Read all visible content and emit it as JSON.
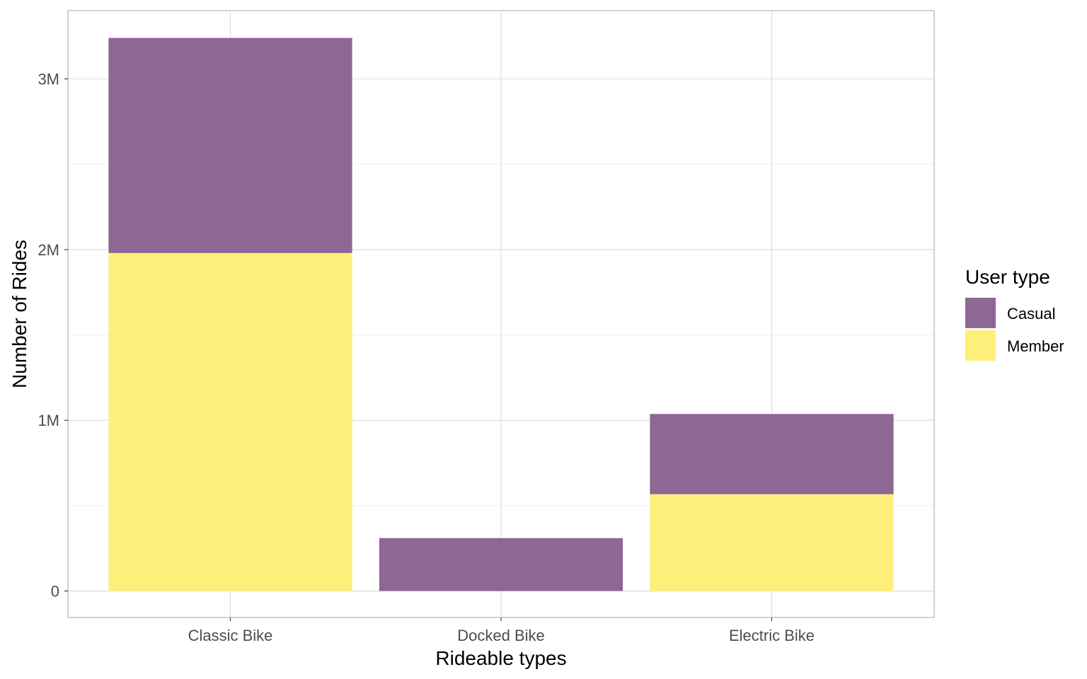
{
  "chart_data": {
    "type": "bar",
    "stacked": true,
    "categories": [
      "Classic Bike",
      "Docked Bike",
      "Electric Bike"
    ],
    "series": [
      {
        "name": "Casual",
        "color": "#8E6794",
        "values": [
          1260000,
          310000,
          470000
        ]
      },
      {
        "name": "Member",
        "color": "#FDEF7A",
        "values": [
          1980000,
          0,
          567000
        ]
      }
    ],
    "stack_order_bottom_to_top": [
      "Member",
      "Casual"
    ],
    "xlabel": "Rideable types",
    "ylabel": "Number of Rides",
    "ylim": [
      -155000,
      3400000
    ],
    "yticks": [
      0,
      1000000,
      2000000,
      3000000
    ],
    "ytick_labels": [
      "0",
      "1M",
      "2M",
      "3M"
    ],
    "grid": true,
    "legend": {
      "title": "User type",
      "position": "right"
    }
  }
}
